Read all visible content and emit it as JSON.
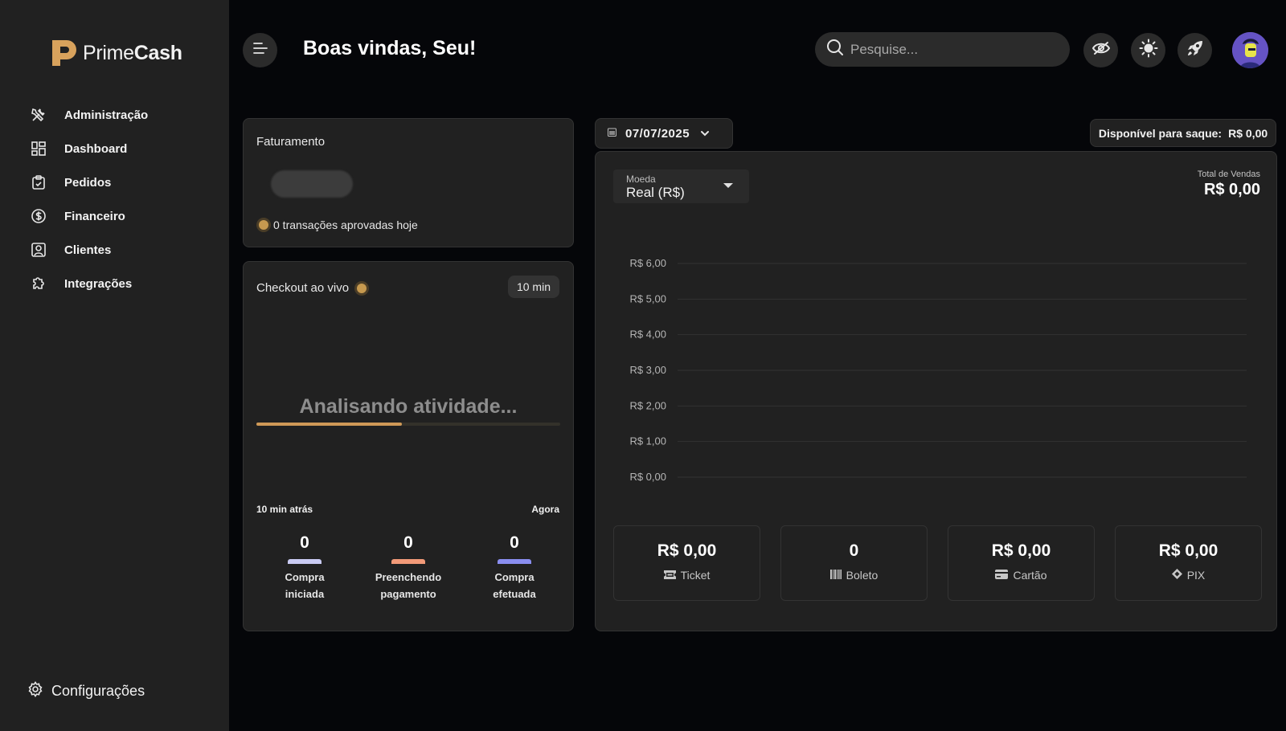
{
  "app": {
    "logo_text_a": "Prime",
    "logo_text_b": "Cash"
  },
  "sidebar": {
    "items": [
      {
        "label": "Administração",
        "icon": "tools-icon"
      },
      {
        "label": "Dashboard",
        "icon": "dashboard-icon"
      },
      {
        "label": "Pedidos",
        "icon": "clipboard-icon"
      },
      {
        "label": "Financeiro",
        "icon": "dollar-icon"
      },
      {
        "label": "Clientes",
        "icon": "user-badge-icon"
      },
      {
        "label": "Integrações",
        "icon": "puzzle-icon"
      }
    ],
    "settings_label": "Configurações"
  },
  "header": {
    "welcome": "Boas vindas, Seu!",
    "search_placeholder": "Pesquise..."
  },
  "faturamento": {
    "title": "Faturamento",
    "transactions": "0 transações aprovadas hoje"
  },
  "checkout": {
    "title": "Checkout ao vivo",
    "window": "10 min",
    "status": "Analisando atividade...",
    "progress": 0.48,
    "left_label": "10 min atrás",
    "right_label": "Agora",
    "stats": [
      {
        "value": "0",
        "label": "Compra iniciada",
        "color": "#c9cbf3"
      },
      {
        "value": "0",
        "label": "Preenchendo pagamento",
        "color": "#f29a78"
      },
      {
        "value": "0",
        "label": "Compra efetuada",
        "color": "#8a8ef0"
      }
    ]
  },
  "date_filter": {
    "value": "07/07/2025"
  },
  "saque": {
    "label": "Disponível para saque:",
    "value": "R$ 0,00"
  },
  "moeda": {
    "label": "Moeda",
    "value": "Real (R$)"
  },
  "total_vendas": {
    "label": "Total de Vendas",
    "value": "R$ 0,00"
  },
  "chart_data": {
    "type": "line",
    "title": "",
    "xlabel": "",
    "ylabel": "",
    "ylim": [
      0,
      6
    ],
    "y_ticks": [
      "R$ 0,00",
      "R$ 1,00",
      "R$ 2,00",
      "R$ 3,00",
      "R$ 4,00",
      "R$ 5,00",
      "R$ 6,00"
    ],
    "grid": true,
    "series": []
  },
  "payments": [
    {
      "value": "R$ 0,00",
      "label": "Ticket",
      "icon": "ticket-icon"
    },
    {
      "value": "0",
      "label": "Boleto",
      "icon": "barcode-icon"
    },
    {
      "value": "R$ 0,00",
      "label": "Cartão",
      "icon": "credit-card-icon"
    },
    {
      "value": "R$ 0,00",
      "label": "PIX",
      "icon": "pix-icon"
    }
  ]
}
